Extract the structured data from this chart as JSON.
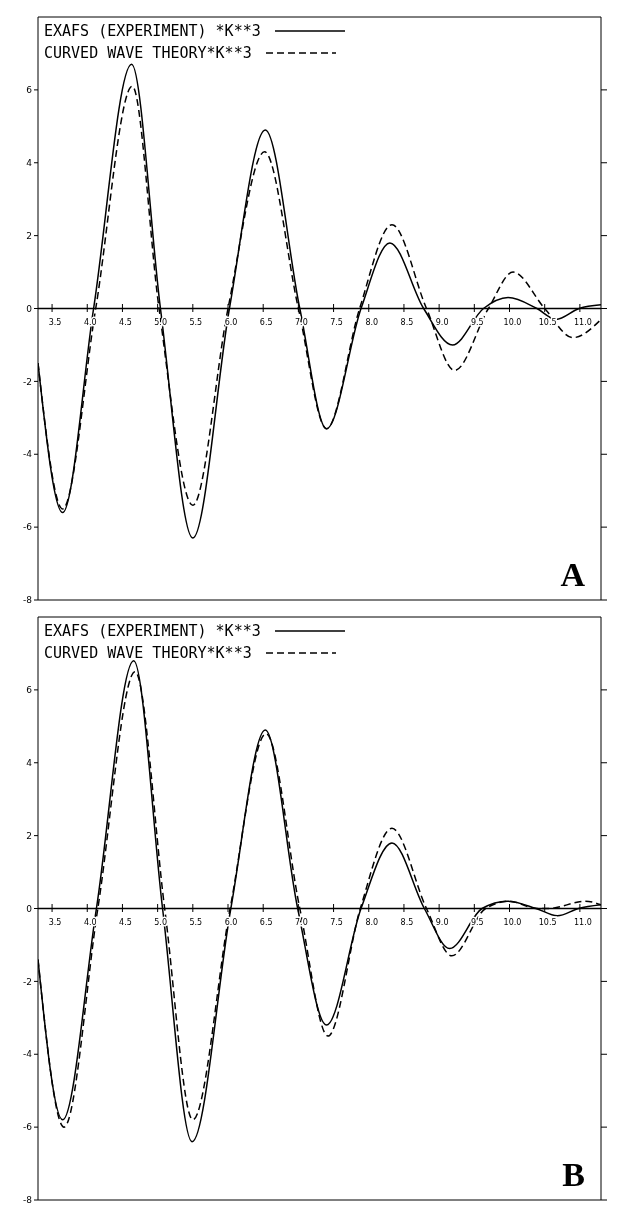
{
  "chart_data": [
    {
      "type": "line",
      "legend": "top left",
      "marker": "none",
      "xlim": [
        3.3,
        11.3
      ],
      "xticks": [
        3.5,
        {
          "value": 4,
          "label": "4.0"
        },
        4.5,
        {
          "value": 5,
          "label": "5.0"
        },
        5.5,
        {
          "value": 6,
          "label": "6.0"
        },
        6.5,
        {
          "value": 7,
          "label": "7.0"
        },
        7.5,
        {
          "value": 8,
          "label": "8.0"
        },
        8.5,
        {
          "value": 9,
          "label": "9.0"
        },
        9.5,
        {
          "value": 10,
          "label": "10.0"
        },
        10.5,
        {
          "value": 11,
          "label": "11.0"
        }
      ],
      "ylim": [
        -8,
        8
      ],
      "yticks": [
        -8,
        -6,
        -4,
        -2,
        0,
        2,
        4,
        6
      ],
      "annotations": [
        "A"
      ],
      "series": [
        {
          "name": "EXAFS (EXPERIMENT) *K**3",
          "color": "#000000",
          "line_style": "solid",
          "x": [
            3.3,
            3.65,
            4.09,
            4.63,
            5.04,
            5.5,
            6.02,
            6.53,
            7.02,
            7.4,
            7.89,
            8.3,
            8.78,
            9.19,
            9.63,
            9.98,
            10.39,
            10.66,
            10.99,
            11.3
          ],
          "values": [
            -1.5,
            -5.6,
            0,
            6.7,
            0,
            -6.3,
            0,
            4.9,
            0,
            -3.3,
            0,
            1.8,
            0,
            -1.0,
            0,
            0.3,
            0,
            -0.3,
            0,
            0.1
          ]
        },
        {
          "name": "CURVED WAVE THEORY*K**3",
          "color": "#000000",
          "line_style": "dashed",
          "x": [
            3.3,
            3.65,
            4.12,
            4.64,
            5.02,
            5.5,
            6.0,
            6.52,
            7.0,
            7.4,
            7.87,
            8.33,
            8.82,
            9.22,
            9.7,
            10.05,
            10.5,
            10.9,
            11.3
          ],
          "values": [
            -1.5,
            -5.5,
            0,
            6.1,
            0,
            -5.4,
            0,
            4.3,
            0,
            -3.3,
            0,
            2.3,
            0,
            -1.7,
            0,
            1.0,
            0,
            -0.8,
            -0.3
          ]
        }
      ]
    },
    {
      "type": "line",
      "legend": "top left",
      "marker": "none",
      "xlim": [
        3.3,
        11.3
      ],
      "xticks": [
        3.5,
        {
          "value": 4,
          "label": "4.0"
        },
        4.5,
        {
          "value": 5,
          "label": "5.0"
        },
        5.5,
        {
          "value": 6,
          "label": "6.0"
        },
        6.5,
        {
          "value": 7,
          "label": "7.0"
        },
        7.5,
        {
          "value": 8,
          "label": "8.0"
        },
        8.5,
        {
          "value": 9,
          "label": "9.0"
        },
        9.5,
        {
          "value": 10,
          "label": "10.0"
        },
        10.5,
        {
          "value": 11,
          "label": "11.0"
        }
      ],
      "ylim": [
        -8,
        8
      ],
      "yticks": [
        -8,
        -6,
        -4,
        -2,
        0,
        2,
        4,
        6
      ],
      "annotations": [
        "B"
      ],
      "series": [
        {
          "name": "EXAFS (EXPERIMENT) *K**3",
          "color": "#000000",
          "line_style": "solid",
          "x": [
            3.3,
            3.65,
            4.13,
            4.66,
            5.07,
            5.49,
            6.04,
            6.53,
            6.99,
            7.4,
            7.89,
            8.33,
            8.79,
            9.15,
            9.61,
            9.97,
            10.38,
            10.68,
            10.98,
            11.3
          ],
          "values": [
            -1.4,
            -5.8,
            0,
            6.8,
            0,
            -6.4,
            0,
            4.9,
            0,
            -3.2,
            0,
            1.8,
            0,
            -1.1,
            0,
            0.2,
            0,
            -0.2,
            0,
            0.1
          ]
        },
        {
          "name": "CURVED WAVE THEORY*K**3",
          "color": "#000000",
          "line_style": "dashed",
          "x": [
            3.3,
            3.67,
            4.15,
            4.68,
            5.1,
            5.5,
            6.03,
            6.54,
            7.02,
            7.42,
            7.88,
            8.33,
            8.82,
            9.18,
            9.66,
            10.0,
            10.38,
            10.55,
            11.08,
            11.3
          ],
          "values": [
            -1.4,
            -6.0,
            0,
            6.5,
            0,
            -5.8,
            0,
            4.8,
            0,
            -3.5,
            0,
            2.2,
            0,
            -1.3,
            0,
            0.2,
            0,
            0.0,
            0.2,
            0.1
          ]
        }
      ]
    }
  ]
}
